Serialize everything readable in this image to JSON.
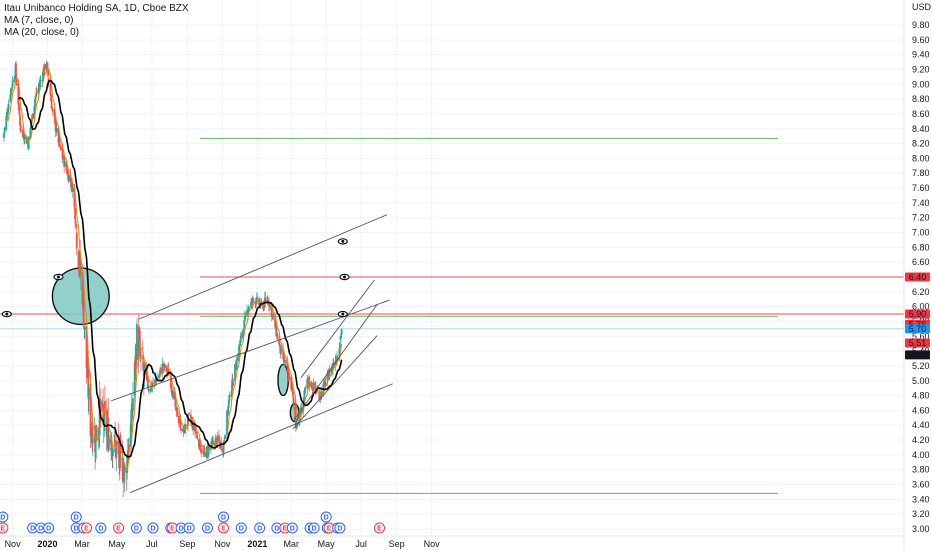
{
  "header": {
    "title": "Itau Unibanco Holding SA, 1D, Cboe BZX",
    "ma7": "MA (7, close, 0)",
    "ma20": "MA (20, close, 0)",
    "currency": "USD"
  },
  "colors": {
    "up": "#26a69a",
    "down": "#ef5350",
    "ma7": "#f57c00",
    "ma20": "#000000",
    "green_level": "#4caf50",
    "red_level": "#f23645",
    "blue_level": "#2196f3",
    "trend_line": "#555555",
    "ellipse_fill": "#7fc8c0",
    "event_dividend": "#2962ff",
    "event_earnings": "#f23645"
  },
  "chart_data": {
    "type": "candlestick",
    "title": "Itau Unibanco Holding SA, 1D, Cboe BZX",
    "currency": "USD",
    "ylim": [
      2.92,
      10.05
    ],
    "y_ticks": [
      "3.00",
      "3.20",
      "3.40",
      "3.60",
      "3.80",
      "4.00",
      "4.20",
      "4.40",
      "4.60",
      "4.80",
      "5.00",
      "5.20",
      "5.40",
      "5.60",
      "5.80",
      "6.00",
      "6.20",
      "6.40",
      "6.60",
      "6.80",
      "7.00",
      "7.20",
      "7.40",
      "7.60",
      "7.80",
      "8.00",
      "8.20",
      "8.40",
      "8.60",
      "8.80",
      "9.00",
      "9.20",
      "9.40",
      "9.60",
      "9.80"
    ],
    "x_ticks": [
      {
        "label": "Nov",
        "date": "2019-11-01"
      },
      {
        "label": "2020",
        "date": "2020-01-01",
        "bold": true
      },
      {
        "label": "Mar",
        "date": "2020-03-01"
      },
      {
        "label": "May",
        "date": "2020-05-01"
      },
      {
        "label": "Jul",
        "date": "2020-07-01"
      },
      {
        "label": "Sep",
        "date": "2020-09-01"
      },
      {
        "label": "Nov",
        "date": "2020-11-01"
      },
      {
        "label": "2021",
        "date": "2021-01-01",
        "bold": true
      },
      {
        "label": "Mar",
        "date": "2021-03-01"
      },
      {
        "label": "May",
        "date": "2021-05-01"
      },
      {
        "label": "Jul",
        "date": "2021-07-01"
      },
      {
        "label": "Sep",
        "date": "2021-09-01"
      },
      {
        "label": "Nov",
        "date": "2021-11-01"
      }
    ],
    "approx_closes": [
      {
        "date": "2019-10-16",
        "close": 8.3
      },
      {
        "date": "2019-10-28",
        "close": 8.9
      },
      {
        "date": "2019-11-06",
        "close": 9.2
      },
      {
        "date": "2019-11-15",
        "close": 8.4
      },
      {
        "date": "2019-11-28",
        "close": 8.2
      },
      {
        "date": "2019-12-10",
        "close": 8.8
      },
      {
        "date": "2019-12-22",
        "close": 9.1
      },
      {
        "date": "2019-12-30",
        "close": 9.3
      },
      {
        "date": "2020-01-10",
        "close": 8.6
      },
      {
        "date": "2020-01-24",
        "close": 8.1
      },
      {
        "date": "2020-02-05",
        "close": 7.8
      },
      {
        "date": "2020-02-14",
        "close": 7.6
      },
      {
        "date": "2020-02-24",
        "close": 6.7
      },
      {
        "date": "2020-03-02",
        "close": 6.2
      },
      {
        "date": "2020-03-09",
        "close": 5.2
      },
      {
        "date": "2020-03-16",
        "close": 4.4
      },
      {
        "date": "2020-03-24",
        "close": 4.2
      },
      {
        "date": "2020-04-02",
        "close": 4.6
      },
      {
        "date": "2020-04-15",
        "close": 4.3
      },
      {
        "date": "2020-04-28",
        "close": 4.1
      },
      {
        "date": "2020-05-08",
        "close": 3.9
      },
      {
        "date": "2020-05-15",
        "close": 3.75
      },
      {
        "date": "2020-05-26",
        "close": 4.4
      },
      {
        "date": "2020-06-05",
        "close": 5.6
      },
      {
        "date": "2020-06-15",
        "close": 5.1
      },
      {
        "date": "2020-06-26",
        "close": 4.9
      },
      {
        "date": "2020-07-08",
        "close": 5.0
      },
      {
        "date": "2020-07-20",
        "close": 5.2
      },
      {
        "date": "2020-07-31",
        "close": 5.1
      },
      {
        "date": "2020-08-12",
        "close": 4.6
      },
      {
        "date": "2020-08-24",
        "close": 4.3
      },
      {
        "date": "2020-09-04",
        "close": 4.5
      },
      {
        "date": "2020-09-16",
        "close": 4.3
      },
      {
        "date": "2020-09-28",
        "close": 4.0
      },
      {
        "date": "2020-10-10",
        "close": 4.1
      },
      {
        "date": "2020-10-22",
        "close": 4.2
      },
      {
        "date": "2020-11-02",
        "close": 4.1
      },
      {
        "date": "2020-11-12",
        "close": 4.7
      },
      {
        "date": "2020-11-24",
        "close": 5.2
      },
      {
        "date": "2020-12-04",
        "close": 5.6
      },
      {
        "date": "2020-12-16",
        "close": 6.0
      },
      {
        "date": "2020-12-28",
        "close": 6.1
      },
      {
        "date": "2021-01-08",
        "close": 6.0
      },
      {
        "date": "2021-01-20",
        "close": 6.1
      },
      {
        "date": "2021-01-30",
        "close": 5.8
      },
      {
        "date": "2021-02-10",
        "close": 5.4
      },
      {
        "date": "2021-02-20",
        "close": 5.2
      },
      {
        "date": "2021-03-02",
        "close": 4.9
      },
      {
        "date": "2021-03-09",
        "close": 4.4
      },
      {
        "date": "2021-03-18",
        "close": 4.6
      },
      {
        "date": "2021-03-30",
        "close": 5.0
      },
      {
        "date": "2021-04-10",
        "close": 4.9
      },
      {
        "date": "2021-04-20",
        "close": 4.8
      },
      {
        "date": "2021-05-01",
        "close": 5.0
      },
      {
        "date": "2021-05-12",
        "close": 5.2
      },
      {
        "date": "2021-05-21",
        "close": 5.35
      },
      {
        "date": "2021-05-28",
        "close": 5.7
      }
    ],
    "horizontal_levels": [
      {
        "price": 8.27,
        "color": "green"
      },
      {
        "price": 6.4,
        "color": "red"
      },
      {
        "price": 5.9,
        "color": "red"
      },
      {
        "price": 5.87,
        "color": "green"
      },
      {
        "price": 5.7,
        "color": "blue"
      },
      {
        "price": 3.48,
        "color": "green"
      }
    ],
    "trend_lines": [
      {
        "from": {
          "date": "2020-06-08",
          "price": 5.83
        },
        "to": {
          "date": "2021-08-15",
          "price": 7.24
        }
      },
      {
        "from": {
          "date": "2020-04-21",
          "price": 4.73
        },
        "to": {
          "date": "2021-08-20",
          "price": 6.09
        }
      },
      {
        "from": {
          "date": "2020-05-24",
          "price": 3.49
        },
        "to": {
          "date": "2021-08-25",
          "price": 4.96
        }
      },
      {
        "from": {
          "date": "2021-03-04",
          "price": 4.35
        },
        "to": {
          "date": "2021-07-29",
          "price": 5.61
        }
      },
      {
        "from": {
          "date": "2021-03-06",
          "price": 4.47
        },
        "to": {
          "date": "2021-07-29",
          "price": 6.03
        }
      },
      {
        "from": {
          "date": "2021-03-18",
          "price": 5.04
        },
        "to": {
          "date": "2021-07-24",
          "price": 6.36
        }
      }
    ],
    "ellipses": [
      {
        "center": {
          "date": "2020-02-28",
          "price": 6.14
        },
        "rx_days": 33,
        "ry_price": 0.38
      },
      {
        "center": {
          "date": "2021-02-15",
          "price": 5.01
        },
        "rx_days": 6,
        "ry_price": 0.21
      },
      {
        "center": {
          "date": "2021-03-07",
          "price": 4.57
        },
        "rx_days": 5,
        "ry_price": 0.12
      }
    ],
    "price_labels": [
      {
        "text": "6.40",
        "price": 6.4,
        "color": "red"
      },
      {
        "text": "5.90",
        "price": 5.9,
        "color": "red"
      },
      {
        "text": "5.76",
        "price": 5.76,
        "color": "red"
      },
      {
        "text": "5.70",
        "price": 5.7,
        "color": "blue"
      },
      {
        "text": "5.51",
        "price": 5.51,
        "color": "red"
      },
      {
        "text": "5.35",
        "price": 5.35,
        "color": "black"
      }
    ],
    "alert_markers": [
      {
        "date": "2019-10-22",
        "price": 5.9
      },
      {
        "date": "2020-01-20",
        "price": 6.4
      },
      {
        "date": "2021-05-30",
        "price": 6.88
      },
      {
        "date": "2021-06-02",
        "price": 6.4
      },
      {
        "date": "2021-05-30",
        "price": 5.9
      }
    ],
    "events": [
      {
        "type": "D",
        "date": "2019-10-15",
        "row": 1
      },
      {
        "type": "E",
        "date": "2019-10-15",
        "row": 2
      },
      {
        "type": "D",
        "date": "2019-12-06",
        "row": 2
      },
      {
        "type": "D",
        "date": "2019-12-20",
        "row": 2
      },
      {
        "type": "D",
        "date": "2020-01-03",
        "row": 2
      },
      {
        "type": "D",
        "date": "2020-02-20",
        "row": 1
      },
      {
        "type": "D",
        "date": "2020-02-20",
        "row": 2
      },
      {
        "type": "D",
        "date": "2020-03-04",
        "row": 2
      },
      {
        "type": "E",
        "date": "2020-03-09",
        "row": 2
      },
      {
        "type": "D",
        "date": "2020-04-03",
        "row": 2
      },
      {
        "type": "E",
        "date": "2020-05-04",
        "row": 2
      },
      {
        "type": "D",
        "date": "2020-06-04",
        "row": 2
      },
      {
        "type": "D",
        "date": "2020-07-03",
        "row": 2
      },
      {
        "type": "D",
        "date": "2020-08-03",
        "row": 2
      },
      {
        "type": "E",
        "date": "2020-08-06",
        "row": 2
      },
      {
        "type": "D",
        "date": "2020-08-21",
        "row": 2
      },
      {
        "type": "D",
        "date": "2020-09-04",
        "row": 2
      },
      {
        "type": "D",
        "date": "2020-10-06",
        "row": 2
      },
      {
        "type": "D",
        "date": "2020-11-03",
        "row": 1
      },
      {
        "type": "E",
        "date": "2020-11-03",
        "row": 2
      },
      {
        "type": "D",
        "date": "2020-12-04",
        "row": 2
      },
      {
        "type": "D",
        "date": "2021-01-05",
        "row": 2
      },
      {
        "type": "D",
        "date": "2021-02-04",
        "row": 2
      },
      {
        "type": "E",
        "date": "2021-02-18",
        "row": 2
      },
      {
        "type": "D",
        "date": "2021-03-03",
        "row": 2
      },
      {
        "type": "D",
        "date": "2021-04-03",
        "row": 2
      },
      {
        "type": "D",
        "date": "2021-04-10",
        "row": 2
      },
      {
        "type": "D",
        "date": "2021-05-01",
        "row": 1
      },
      {
        "type": "D",
        "date": "2021-05-03",
        "row": 2
      },
      {
        "type": "E",
        "date": "2021-05-06",
        "row": 2
      },
      {
        "type": "D",
        "date": "2021-05-21",
        "row": 2
      },
      {
        "type": "D",
        "date": "2021-05-25",
        "row": 2
      },
      {
        "type": "E",
        "date": "2021-08-02",
        "row": 2
      }
    ]
  }
}
